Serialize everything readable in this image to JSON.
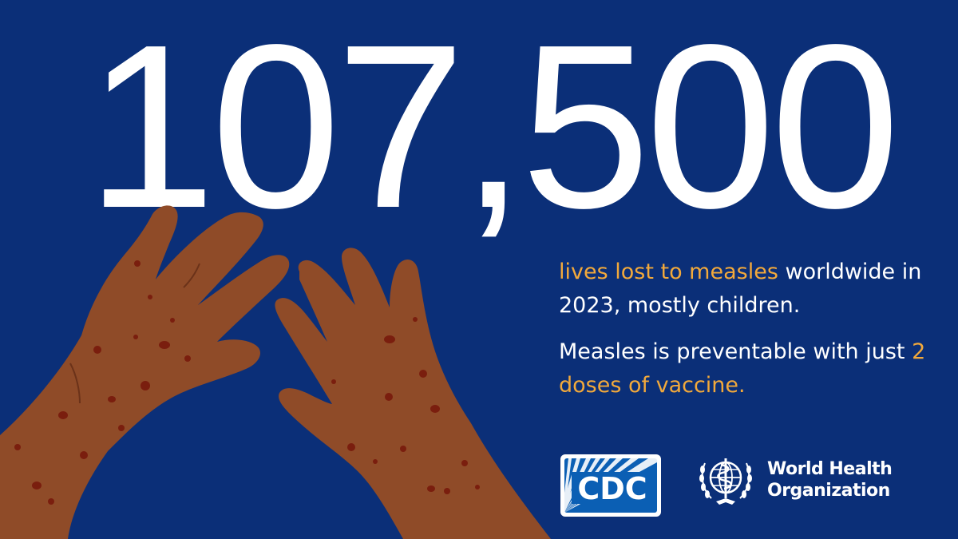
{
  "headline": {
    "number": "107,500"
  },
  "message": {
    "line1_accent": "lives lost to measles",
    "line1_rest": " worldwide in 2023, mostly children.",
    "line2_start": "Measles is preventable with just ",
    "line2_accent": "2 doses of vaccine."
  },
  "logos": {
    "cdc": "CDC",
    "who_line1": "World Health",
    "who_line2": "Organization"
  },
  "colors": {
    "background": "#0b2f78",
    "accent": "#f2a93b",
    "text": "#ffffff",
    "skin": "#8f4b28",
    "spots": "#7a1e0e"
  }
}
